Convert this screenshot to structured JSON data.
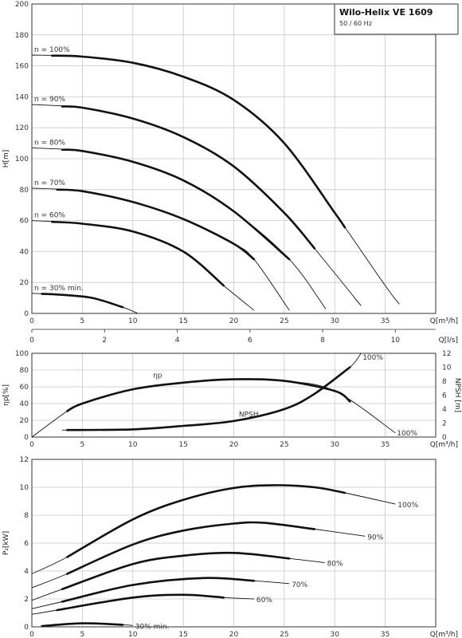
{
  "title": "Wilo-Helix VE 1609",
  "subtitle": "50 / 60 Hz",
  "chart_data": [
    {
      "id": "head",
      "type": "line",
      "xlabel": "Q[m³/h]",
      "ylabel": "H[m]",
      "xlim": [
        0,
        40
      ],
      "ylim": [
        0,
        200
      ],
      "xticks": [
        0,
        5,
        10,
        15,
        20,
        25,
        30,
        35
      ],
      "yticks": [
        0,
        20,
        40,
        60,
        80,
        100,
        120,
        140,
        160,
        180,
        200
      ],
      "secondary_x": {
        "label": "Q[l/s]",
        "ticks": [
          0,
          2,
          4,
          6,
          8,
          10
        ]
      },
      "series": [
        {
          "name": "n = 100%",
          "thick_range": [
            2,
            31
          ],
          "points": [
            [
              0,
              167
            ],
            [
              5,
              166
            ],
            [
              10,
              162
            ],
            [
              15,
              153
            ],
            [
              20,
              138
            ],
            [
              25,
              110
            ],
            [
              30,
              65
            ],
            [
              35,
              18
            ],
            [
              36.4,
              6
            ]
          ]
        },
        {
          "name": "n = 90%",
          "thick_range": [
            3,
            28
          ],
          "points": [
            [
              0,
              135
            ],
            [
              5,
              133
            ],
            [
              10,
              126
            ],
            [
              15,
              114
            ],
            [
              20,
              95
            ],
            [
              25,
              65
            ],
            [
              28,
              42
            ],
            [
              32.6,
              5
            ]
          ]
        },
        {
          "name": "n = 80%",
          "thick_range": [
            3,
            25.5
          ],
          "points": [
            [
              0,
              107
            ],
            [
              5,
              105
            ],
            [
              10,
              98
            ],
            [
              15,
              86
            ],
            [
              20,
              66
            ],
            [
              25.5,
              35
            ],
            [
              29.1,
              3
            ]
          ]
        },
        {
          "name": "n = 70%",
          "thick_range": [
            2.5,
            22
          ],
          "points": [
            [
              0,
              81
            ],
            [
              5,
              79
            ],
            [
              10,
              72
            ],
            [
              15,
              61
            ],
            [
              20,
              45
            ],
            [
              22,
              35
            ],
            [
              25.5,
              2
            ]
          ]
        },
        {
          "name": "n = 60%",
          "thick_range": [
            2,
            19
          ],
          "points": [
            [
              0,
              60
            ],
            [
              5,
              58
            ],
            [
              10,
              53
            ],
            [
              15,
              40
            ],
            [
              19,
              18
            ],
            [
              22,
              2
            ]
          ]
        },
        {
          "name": "n = 30% min.",
          "thick_range": [
            1,
            9
          ],
          "points": [
            [
              0,
              13
            ],
            [
              3,
              12
            ],
            [
              6,
              10
            ],
            [
              9,
              4
            ],
            [
              10.5,
              0
            ]
          ]
        }
      ]
    },
    {
      "id": "efficiency",
      "type": "line",
      "xlabel": "Q[m³/h]",
      "ylabel": "ηp[%]",
      "y2label": "NPSH [m]",
      "xlim": [
        0,
        40
      ],
      "ylim": [
        0,
        100
      ],
      "y2lim": [
        0,
        12
      ],
      "xticks": [
        0,
        5,
        10,
        15,
        20,
        25,
        30,
        35
      ],
      "yticks": [
        0,
        20,
        40,
        60,
        80,
        100
      ],
      "y2ticks": [
        0,
        2,
        4,
        6,
        8,
        10,
        12
      ],
      "series": [
        {
          "name": "ηp",
          "curve_label": "100%",
          "thick_range": [
            3.5,
            31.5
          ],
          "points": [
            [
              0,
              0
            ],
            [
              3.5,
              31
            ],
            [
              5,
              40
            ],
            [
              10,
              57
            ],
            [
              15,
              65
            ],
            [
              20,
              69
            ],
            [
              25,
              67
            ],
            [
              30,
              55
            ],
            [
              36,
              5
            ]
          ]
        },
        {
          "name": "NPSH",
          "curve_label": "100%",
          "axis": "right",
          "thick_range": [
            3.5,
            31.5
          ],
          "points": [
            [
              3,
              1
            ],
            [
              10,
              1.1
            ],
            [
              15,
              1.6
            ],
            [
              20,
              2.3
            ],
            [
              25,
              4
            ],
            [
              28,
              6.2
            ],
            [
              31.5,
              10
            ],
            [
              32.6,
              12
            ]
          ]
        }
      ]
    },
    {
      "id": "power",
      "type": "line",
      "xlabel": "Q[m³/h]",
      "ylabel": "P₂[kW]",
      "xlim": [
        0,
        40
      ],
      "ylim": [
        0,
        12
      ],
      "xticks": [
        0,
        5,
        10,
        15,
        20,
        25,
        30,
        35
      ],
      "yticks": [
        0,
        2,
        4,
        6,
        8,
        10,
        12
      ],
      "series": [
        {
          "name": "100%",
          "thick_range": [
            3.5,
            31
          ],
          "points": [
            [
              0,
              3.8
            ],
            [
              3.5,
              5
            ],
            [
              10,
              7.7
            ],
            [
              15,
              9.1
            ],
            [
              20,
              9.95
            ],
            [
              24,
              10.15
            ],
            [
              28,
              10
            ],
            [
              31,
              9.6
            ],
            [
              36,
              8.8
            ]
          ]
        },
        {
          "name": "90%",
          "thick_range": [
            3.5,
            28
          ],
          "points": [
            [
              0,
              2.8
            ],
            [
              3.5,
              3.8
            ],
            [
              10,
              5.9
            ],
            [
              15,
              6.9
            ],
            [
              20,
              7.4
            ],
            [
              23,
              7.45
            ],
            [
              28,
              7
            ],
            [
              33,
              6.5
            ]
          ]
        },
        {
          "name": "80%",
          "thick_range": [
            3,
            25.5
          ],
          "points": [
            [
              0,
              1.9
            ],
            [
              3,
              2.7
            ],
            [
              10,
              4.5
            ],
            [
              15,
              5.1
            ],
            [
              20,
              5.3
            ],
            [
              25.5,
              4.9
            ],
            [
              29,
              4.6
            ]
          ]
        },
        {
          "name": "70%",
          "thick_range": [
            3,
            22
          ],
          "points": [
            [
              0,
              1.3
            ],
            [
              3,
              1.8
            ],
            [
              10,
              3.0
            ],
            [
              17,
              3.5
            ],
            [
              22,
              3.3
            ],
            [
              25.5,
              3.1
            ]
          ]
        },
        {
          "name": "60%",
          "thick_range": [
            2.5,
            19
          ],
          "points": [
            [
              0,
              0.9
            ],
            [
              2.5,
              1.2
            ],
            [
              10,
              2.1
            ],
            [
              15,
              2.3
            ],
            [
              19,
              2.1
            ],
            [
              22,
              2.0
            ]
          ]
        },
        {
          "name": "30% min.",
          "thick_range": [
            1,
            9
          ],
          "points": [
            [
              1,
              0.05
            ],
            [
              5,
              0.25
            ],
            [
              9,
              0.15
            ],
            [
              10,
              0.1
            ]
          ]
        }
      ]
    }
  ]
}
